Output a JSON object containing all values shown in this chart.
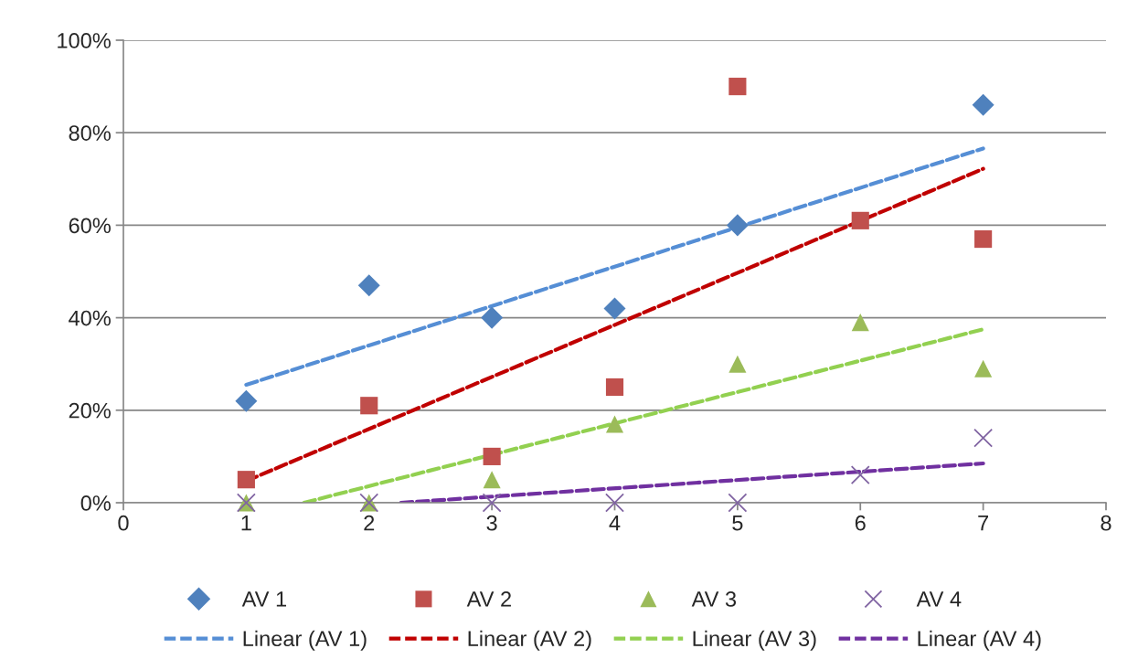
{
  "chart_data": {
    "type": "scatter",
    "x": [
      1,
      2,
      3,
      4,
      5,
      6,
      7
    ],
    "series": [
      {
        "name": "AV 1",
        "marker": "diamond",
        "color": "#4f81bd",
        "values": [
          22,
          47,
          40,
          42,
          60,
          null,
          86
        ]
      },
      {
        "name": "AV 2",
        "marker": "square",
        "color": "#c0504d",
        "values": [
          5,
          21,
          10,
          25,
          90,
          61,
          57
        ]
      },
      {
        "name": "AV 3",
        "marker": "triangle",
        "color": "#9bbb59",
        "values": [
          0,
          0,
          5,
          17,
          30,
          39,
          29
        ]
      },
      {
        "name": "AV 4",
        "marker": "cross",
        "color": "#8064a2",
        "values": [
          0,
          0,
          0,
          0,
          0,
          6,
          14
        ]
      },
      {
        "name": "Linear (AV 1)",
        "type": "line",
        "line_style": "dashed",
        "marker": "none",
        "color": "#558ed5",
        "x": [
          1,
          7
        ],
        "values": [
          25.5,
          76.6
        ]
      },
      {
        "name": "Linear (AV 2)",
        "type": "line",
        "line_style": "dashed",
        "marker": "none",
        "color": "#c00000",
        "x": [
          1,
          7
        ],
        "values": [
          4.7,
          72.2
        ]
      },
      {
        "name": "Linear (AV 3)",
        "type": "line",
        "line_style": "dashed",
        "marker": "none",
        "color": "#92d050",
        "x": [
          1.47,
          7
        ],
        "values": [
          0,
          37.5
        ]
      },
      {
        "name": "Linear (AV 4)",
        "type": "line",
        "line_style": "dashed",
        "marker": "none",
        "color": "#7030a0",
        "x": [
          2.26,
          7
        ],
        "values": [
          0,
          8.5
        ]
      }
    ],
    "xlim": [
      0,
      8
    ],
    "xticks": [
      0,
      1,
      2,
      3,
      4,
      5,
      6,
      7,
      8
    ],
    "ylim": [
      0,
      100
    ],
    "yticks": [
      {
        "value": 0,
        "label": "0%"
      },
      {
        "value": 20,
        "label": "20%"
      },
      {
        "value": 40,
        "label": "40%"
      },
      {
        "value": 60,
        "label": "60%"
      },
      {
        "value": 80,
        "label": "80%"
      },
      {
        "value": 100,
        "label": "100%"
      }
    ],
    "grid": "y",
    "legend": "bottom"
  }
}
